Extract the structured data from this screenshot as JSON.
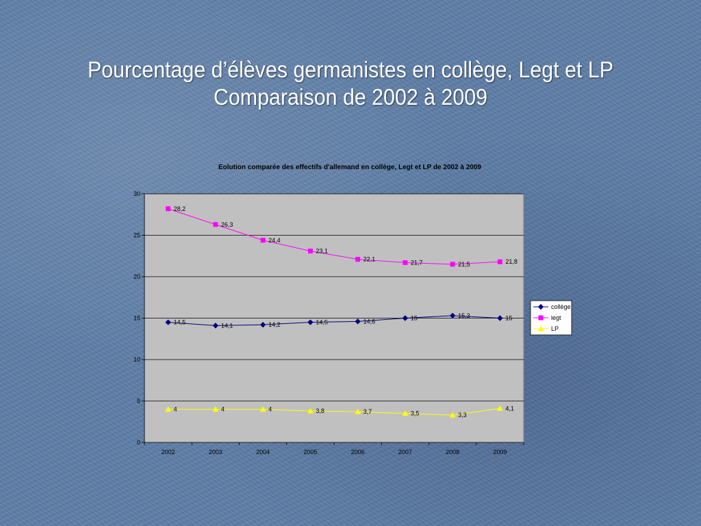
{
  "slide": {
    "title_line1": "Pourcentage d’élèves germanistes en collège, Legt et LP",
    "title_line2": "Comparaison de 2002 à 2009"
  },
  "chart_data": {
    "type": "line",
    "title": "Eolution comparée des effectifs d'allemand en collège, Legt et LP de 2002 à 2009",
    "categories": [
      "2002",
      "2003",
      "2004",
      "2005",
      "2006",
      "2007",
      "2008",
      "2009"
    ],
    "ylim": [
      0,
      30
    ],
    "yticks": [
      0,
      5,
      10,
      15,
      20,
      25,
      30
    ],
    "grid": true,
    "legend_position": "right",
    "series": [
      {
        "name": "collège",
        "color": "#000080",
        "marker": "diamond",
        "values": [
          14.5,
          14.1,
          14.2,
          14.5,
          14.6,
          15,
          15.3,
          15
        ],
        "labels": [
          "14,5",
          "14,1",
          "14,2",
          "14,5",
          "14,6",
          "15",
          "15,3",
          "15"
        ]
      },
      {
        "name": "legt",
        "color": "#ff00ff",
        "marker": "square",
        "values": [
          28.2,
          26.3,
          24.4,
          23.1,
          22.1,
          21.7,
          21.5,
          21.8
        ],
        "labels": [
          "28,2",
          "26,3",
          "24,4",
          "23,1",
          "22,1",
          "21,7",
          "21,5",
          "21,8"
        ]
      },
      {
        "name": "LP",
        "color": "#ffff00",
        "marker": "triangle",
        "values": [
          4,
          4,
          4,
          3.8,
          3.7,
          3.5,
          3.3,
          4.1
        ],
        "labels": [
          "4",
          "4",
          "4",
          "3,8",
          "3,7",
          "3,5",
          "3,3",
          "4,1"
        ]
      }
    ]
  }
}
